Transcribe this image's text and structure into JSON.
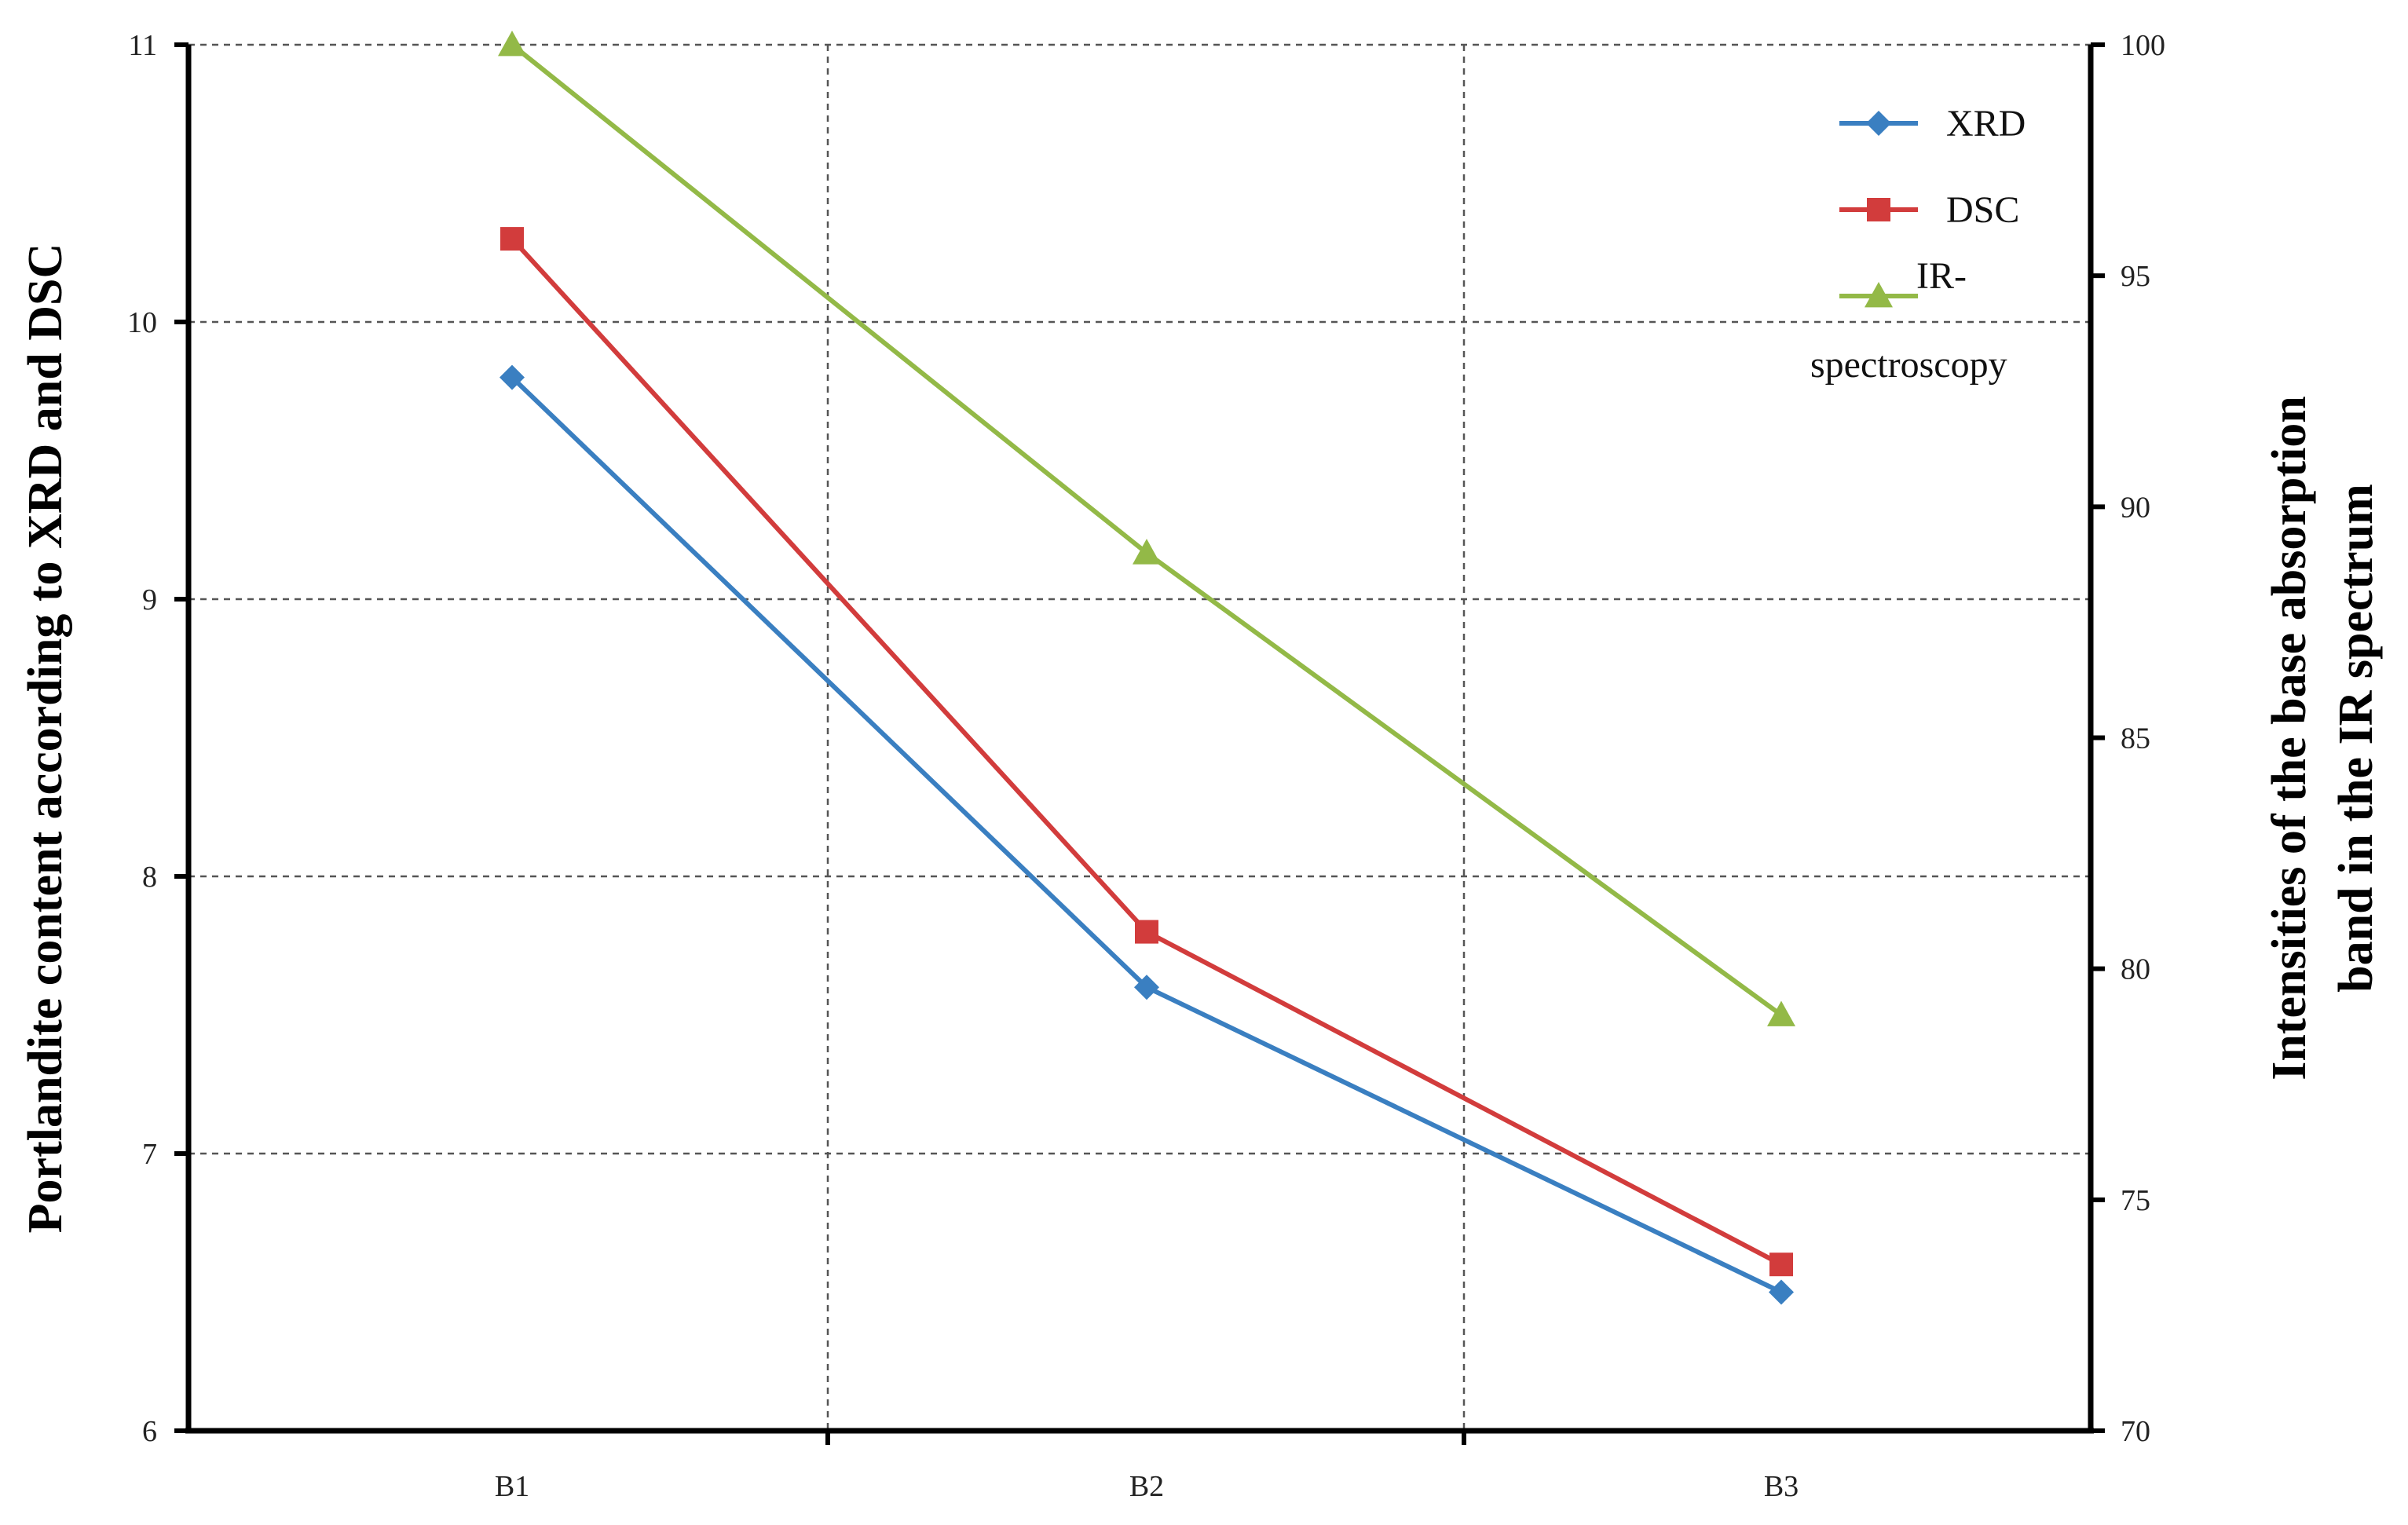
{
  "chart_data": {
    "type": "line",
    "categories": [
      "B1",
      "B2",
      "B3"
    ],
    "y_left": {
      "label": "Portlandite content according to XRD and DSC",
      "range": [
        6,
        11
      ],
      "ticks": [
        "6",
        "7",
        "8",
        "9",
        "10",
        "11"
      ]
    },
    "y_right": {
      "label_lines": [
        "Intensities of the base absorption",
        "band in the IR spectrum"
      ],
      "range": [
        70,
        100
      ],
      "ticks": [
        "70",
        "75",
        "80",
        "85",
        "90",
        "95",
        "100"
      ]
    },
    "series": [
      {
        "name": "XRD",
        "axis": "left",
        "values": [
          9.8,
          7.6,
          6.5
        ],
        "color": "#3a7fc1",
        "marker": "diamond"
      },
      {
        "name": "DSC",
        "axis": "left",
        "values": [
          10.3,
          7.8,
          6.6
        ],
        "color": "#d23c3c",
        "marker": "square"
      },
      {
        "name": "IR-spectroscopy",
        "legend_lines": [
          "IR-",
          "spectroscopy"
        ],
        "axis": "right",
        "values": [
          100,
          89,
          79
        ],
        "color": "#93b947",
        "marker": "triangle"
      }
    ],
    "grid": true,
    "legend_position": "top-right"
  }
}
